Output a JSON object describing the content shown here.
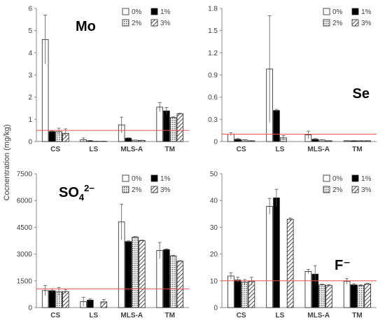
{
  "figure": {
    "ylabel": "Cocnentration (mg/kg)"
  },
  "legend_labels": [
    "0%",
    "1%",
    "2%",
    "3%"
  ],
  "colors": {
    "threshold_line": "#f05050",
    "bar_stroke": "#222222",
    "axis": "#888888",
    "grid": "#d9d9d9"
  },
  "chart_data": [
    {
      "type": "bar",
      "title": "Mo",
      "categories": [
        "CS",
        "LS",
        "MLS-A",
        "TM"
      ],
      "ylim": [
        0,
        6
      ],
      "yticks": [
        0,
        1,
        2,
        3,
        4,
        5,
        6
      ],
      "ytick_labels": [
        "0",
        "1",
        "2",
        "3",
        "4",
        "5",
        "6"
      ],
      "threshold": 0.5,
      "legend_position": "top-right",
      "series": [
        {
          "name": "0%",
          "values": [
            4.6,
            0.08,
            0.75,
            1.55
          ],
          "errors": [
            1.1,
            0.08,
            0.35,
            0.2
          ]
        },
        {
          "name": "1%",
          "values": [
            0.45,
            0.03,
            0.15,
            1.38
          ],
          "errors": [
            0.03,
            0.02,
            0.02,
            0.15
          ]
        },
        {
          "name": "2%",
          "values": [
            0.45,
            0.01,
            0.06,
            1.08
          ],
          "errors": [
            0.15,
            0.01,
            0.01,
            0.03
          ]
        },
        {
          "name": "3%",
          "values": [
            0.37,
            0.01,
            0.05,
            1.25
          ],
          "errors": [
            0.2,
            0.01,
            0.01,
            0.02
          ]
        }
      ]
    },
    {
      "type": "bar",
      "title": "Se",
      "categories": [
        "CS",
        "LS",
        "MLS-A",
        "TM"
      ],
      "ylim": [
        0,
        1.8
      ],
      "yticks": [
        0,
        0.3,
        0.6,
        0.9,
        1.2,
        1.5,
        1.8
      ],
      "ytick_labels": [
        "0",
        "0.3",
        "0.6",
        "0.9",
        "1.2",
        "1.5",
        "1.8"
      ],
      "threshold": 0.1,
      "legend_position": "top-right",
      "series": [
        {
          "name": "0%",
          "values": [
            0.1,
            0.98,
            0.09,
            0.01
          ],
          "errors": [
            0.02,
            0.72,
            0.05,
            0.003
          ]
        },
        {
          "name": "1%",
          "values": [
            0.03,
            0.42,
            0.03,
            0.01
          ],
          "errors": [
            0.01,
            0.015,
            0.01,
            0.003
          ]
        },
        {
          "name": "2%",
          "values": [
            0.02,
            0.05,
            0.02,
            0.01
          ],
          "errors": [
            0.005,
            0.03,
            0.005,
            0.003
          ]
        },
        {
          "name": "3%",
          "values": [
            0.01,
            0.0,
            0.01,
            0.01
          ],
          "errors": [
            0.003,
            0.0,
            0.003,
            0.003
          ]
        }
      ]
    },
    {
      "type": "bar",
      "title_base": "SO",
      "title_sub": "4",
      "title_sup": "2−",
      "categories": [
        "CS",
        "LS",
        "MLS-A",
        "TM"
      ],
      "ylim": [
        0,
        7500
      ],
      "yticks": [
        0,
        1500,
        3000,
        4500,
        6000,
        7500
      ],
      "ytick_labels": [
        "0",
        "1500",
        "3000",
        "4500",
        "6000",
        "7500"
      ],
      "threshold": 1050,
      "legend_position": "top-right",
      "series": [
        {
          "name": "0%",
          "values": [
            950,
            330,
            4800,
            3200
          ],
          "errors": [
            280,
            250,
            1000,
            450
          ]
        },
        {
          "name": "1%",
          "values": [
            950,
            420,
            3700,
            3250
          ],
          "errors": [
            100,
            60,
            40,
            40
          ]
        },
        {
          "name": "2%",
          "values": [
            900,
            0,
            3950,
            2900
          ],
          "errors": [
            230,
            0,
            30,
            30
          ]
        },
        {
          "name": "3%",
          "values": [
            900,
            320,
            3750,
            2600
          ],
          "errors": [
            120,
            130,
            30,
            30
          ]
        }
      ]
    },
    {
      "type": "bar",
      "title": "F⁻",
      "categories": [
        "CS",
        "LS",
        "MLS-A",
        "TM"
      ],
      "ylim": [
        0,
        50
      ],
      "yticks": [
        0,
        10,
        20,
        30,
        40,
        50
      ],
      "ytick_labels": [
        "0",
        "10",
        "20",
        "30",
        "40",
        "50"
      ],
      "threshold": 10,
      "legend_position": "top-right",
      "series": [
        {
          "name": "0%",
          "values": [
            11.8,
            37.8,
            13.5,
            9.8
          ],
          "errors": [
            1.2,
            3.0,
            0.8,
            1.0
          ]
        },
        {
          "name": "1%",
          "values": [
            10.3,
            41.0,
            12.5,
            8.5
          ],
          "errors": [
            1.0,
            3.2,
            3.2,
            0.4
          ]
        },
        {
          "name": "2%",
          "values": [
            9.5,
            0.0,
            8.5,
            8.2
          ],
          "errors": [
            1.0,
            0.0,
            0.3,
            0.3
          ]
        },
        {
          "name": "3%",
          "values": [
            9.8,
            33.0,
            8.3,
            8.8
          ],
          "errors": [
            1.5,
            0.5,
            0.3,
            0.3
          ]
        }
      ]
    }
  ]
}
